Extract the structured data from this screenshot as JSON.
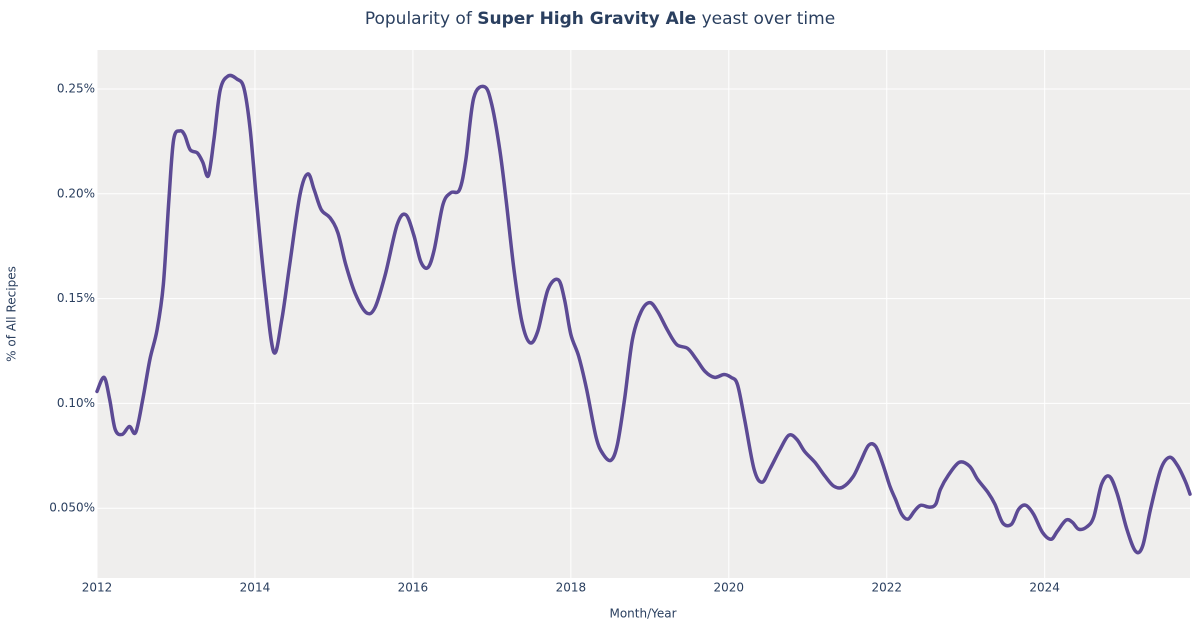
{
  "chart_data": {
    "type": "line",
    "title": [
      {
        "text": "Popularity of "
      },
      {
        "text": "Super High Gravity Ale",
        "bold": true
      },
      {
        "text": " yeast over time"
      }
    ],
    "x_label": "Month/Year",
    "y_label": "% of All Recipes",
    "x": [
      2012.0,
      2012.09,
      2012.16,
      2012.23,
      2012.32,
      2012.41,
      2012.49,
      2012.58,
      2012.67,
      2012.76,
      2012.84,
      2012.91,
      2012.97,
      2013.05,
      2013.11,
      2013.18,
      2013.27,
      2013.34,
      2013.41,
      2013.48,
      2013.56,
      2013.66,
      2013.77,
      2013.86,
      2013.94,
      2014.03,
      2014.13,
      2014.24,
      2014.34,
      2014.44,
      2014.57,
      2014.67,
      2014.75,
      2014.84,
      2014.95,
      2015.05,
      2015.15,
      2015.27,
      2015.41,
      2015.52,
      2015.65,
      2015.8,
      2015.91,
      2016.01,
      2016.1,
      2016.19,
      2016.27,
      2016.38,
      2016.48,
      2016.59,
      2016.67,
      2016.77,
      2016.91,
      2017.0,
      2017.1,
      2017.18,
      2017.28,
      2017.38,
      2017.48,
      2017.58,
      2017.71,
      2017.84,
      2017.92,
      2018.0,
      2018.1,
      2018.2,
      2018.32,
      2018.41,
      2018.51,
      2018.59,
      2018.68,
      2018.78,
      2018.89,
      2019.0,
      2019.1,
      2019.22,
      2019.34,
      2019.48,
      2019.59,
      2019.7,
      2019.82,
      2019.94,
      2020.03,
      2020.11,
      2020.2,
      2020.32,
      2020.42,
      2020.52,
      2020.65,
      2020.76,
      2020.86,
      2020.96,
      2021.09,
      2021.22,
      2021.33,
      2021.44,
      2021.57,
      2021.67,
      2021.77,
      2021.86,
      2021.95,
      2022.04,
      2022.11,
      2022.19,
      2022.27,
      2022.35,
      2022.43,
      2022.54,
      2022.62,
      2022.68,
      2022.78,
      2022.92,
      2023.05,
      2023.15,
      2023.28,
      2023.37,
      2023.47,
      2023.58,
      2023.67,
      2023.76,
      2023.86,
      2023.97,
      2024.08,
      2024.16,
      2024.27,
      2024.35,
      2024.43,
      2024.53,
      2024.62,
      2024.72,
      2024.82,
      2024.92,
      2025.04,
      2025.15,
      2025.24,
      2025.34,
      2025.47,
      2025.58,
      2025.68,
      2025.78,
      2025.84
    ],
    "series": [
      {
        "name": "Super High Gravity Ale",
        "color": "#5c4a94",
        "values": [
          0.1057,
          0.1124,
          0.102,
          0.0876,
          0.0852,
          0.089,
          0.0862,
          0.102,
          0.121,
          0.135,
          0.1567,
          0.197,
          0.2257,
          0.23,
          0.228,
          0.221,
          0.2195,
          0.215,
          0.2086,
          0.2257,
          0.2495,
          0.2562,
          0.2548,
          0.2505,
          0.2305,
          0.1924,
          0.1543,
          0.1243,
          0.14,
          0.1662,
          0.1995,
          0.2095,
          0.2019,
          0.1924,
          0.1886,
          0.1814,
          0.1662,
          0.1524,
          0.1433,
          0.1457,
          0.1614,
          0.1852,
          0.19,
          0.1805,
          0.1676,
          0.1648,
          0.1733,
          0.1948,
          0.2005,
          0.2019,
          0.2162,
          0.2457,
          0.251,
          0.2424,
          0.221,
          0.1971,
          0.1638,
          0.139,
          0.129,
          0.1343,
          0.1543,
          0.159,
          0.1495,
          0.1329,
          0.1224,
          0.1067,
          0.0838,
          0.0757,
          0.0729,
          0.0805,
          0.1019,
          0.1305,
          0.1438,
          0.1481,
          0.1438,
          0.1352,
          0.1281,
          0.1262,
          0.121,
          0.1152,
          0.1124,
          0.1138,
          0.1124,
          0.109,
          0.0924,
          0.0686,
          0.0624,
          0.0686,
          0.0781,
          0.0848,
          0.0829,
          0.0771,
          0.0719,
          0.0652,
          0.0605,
          0.06,
          0.0648,
          0.0724,
          0.08,
          0.0795,
          0.071,
          0.0605,
          0.0543,
          0.0471,
          0.0448,
          0.0486,
          0.0514,
          0.0505,
          0.0519,
          0.059,
          0.0657,
          0.0719,
          0.07,
          0.0638,
          0.0576,
          0.0519,
          0.0429,
          0.0424,
          0.0495,
          0.0514,
          0.0471,
          0.0386,
          0.0352,
          0.039,
          0.0443,
          0.0433,
          0.04,
          0.041,
          0.0457,
          0.0614,
          0.0652,
          0.0567,
          0.04,
          0.0295,
          0.0319,
          0.0495,
          0.0686,
          0.0743,
          0.0705,
          0.0629,
          0.0567
        ]
      }
    ],
    "xlim": [
      2012,
      2025.84
    ],
    "xticks": [
      2012,
      2014,
      2016,
      2018,
      2020,
      2022,
      2024
    ],
    "ylim": [
      0.0167,
      0.2686
    ],
    "yticks": [
      {
        "value": 0.05,
        "label": "0.050%"
      },
      {
        "value": 0.1,
        "label": "0.10%"
      },
      {
        "value": 0.15,
        "label": "0.15%"
      },
      {
        "value": 0.2,
        "label": "0.20%"
      },
      {
        "value": 0.25,
        "label": "0.25%"
      }
    ],
    "grid": true,
    "legend": false
  }
}
